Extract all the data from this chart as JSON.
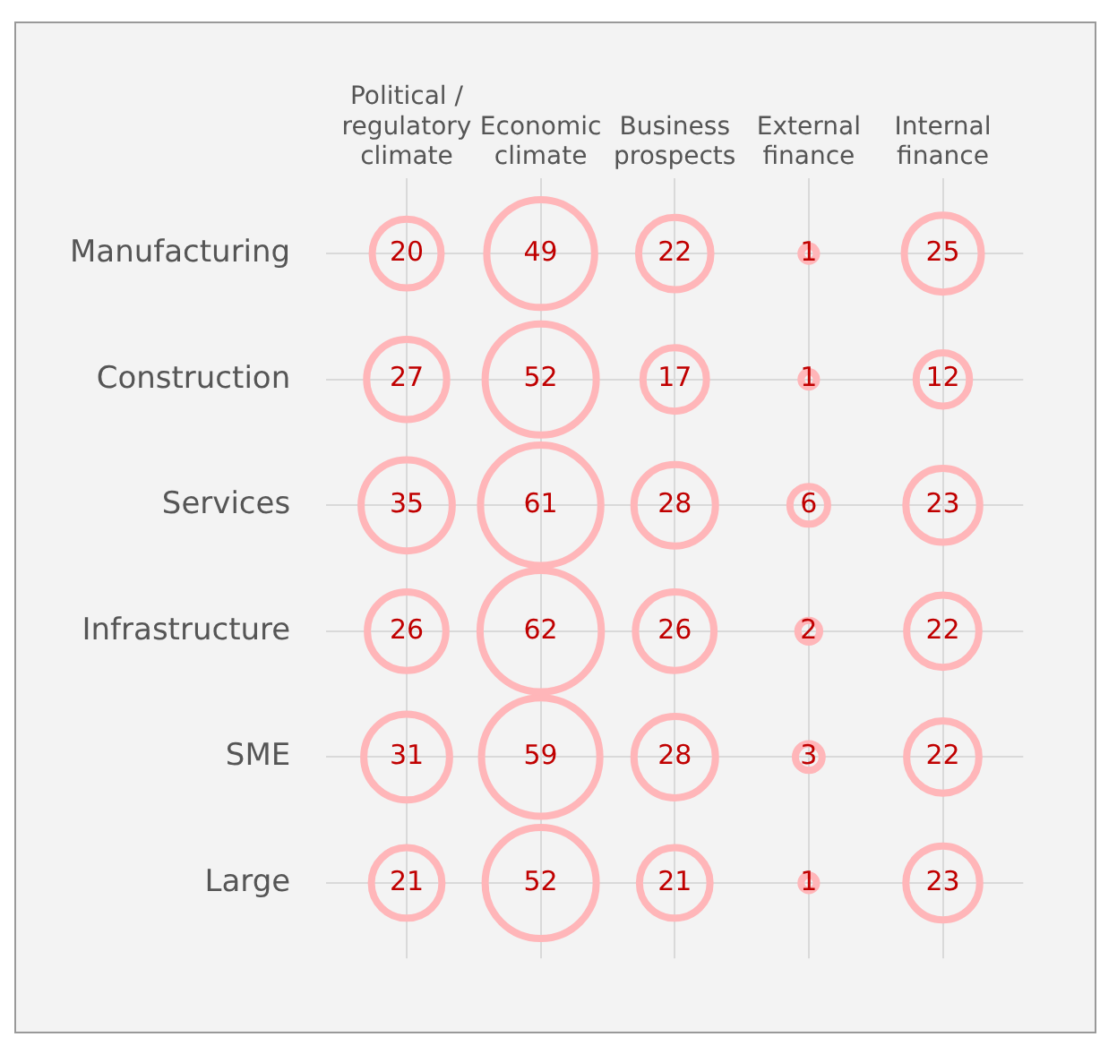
{
  "chart_data": {
    "type": "heatmap",
    "categories": [
      "Political / regulatory climate",
      "Economic climate",
      "Business prospects",
      "External finance",
      "Internal finance"
    ],
    "y_categories": [
      "Manufacturing",
      "Construction",
      "Services",
      "Infrastructure",
      "SME",
      "Large"
    ],
    "color": "#ffb6b9",
    "data_labels": true,
    "grid": true,
    "cells": [
      [
        20,
        49,
        22,
        1,
        25
      ],
      [
        27,
        52,
        17,
        1,
        12
      ],
      [
        35,
        61,
        28,
        6,
        23
      ],
      [
        26,
        62,
        26,
        2,
        22
      ],
      [
        31,
        59,
        28,
        3,
        22
      ],
      [
        21,
        52,
        21,
        1,
        23
      ]
    ]
  }
}
